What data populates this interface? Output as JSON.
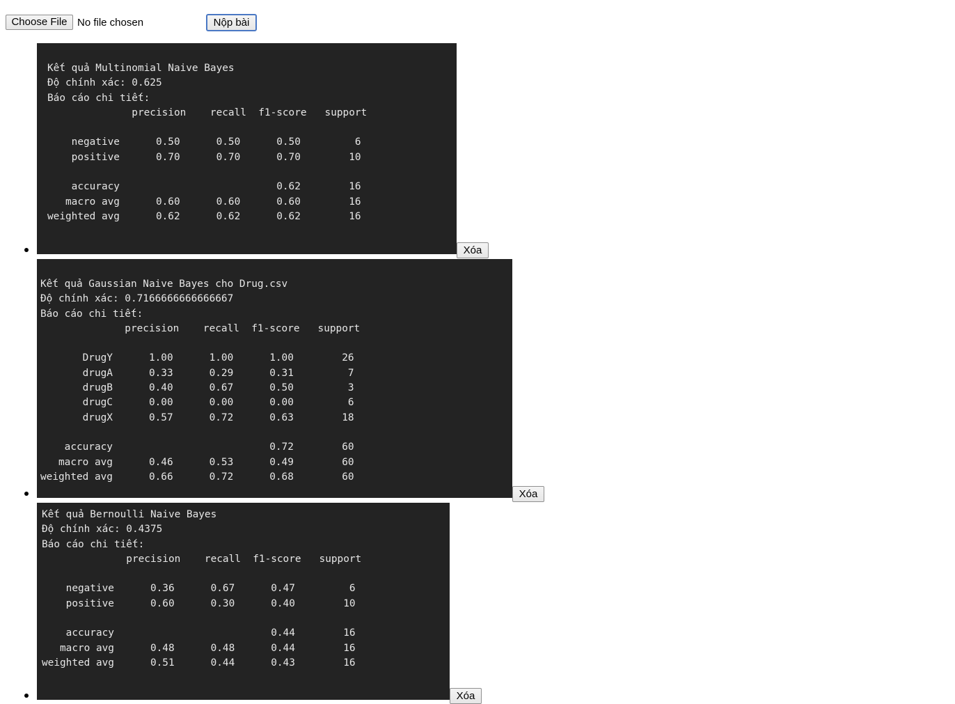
{
  "upload": {
    "choose_label": "Choose File",
    "file_status": "No file chosen",
    "submit_label": "Nộp bài"
  },
  "results": [
    {
      "title": "Kết quả Multinomial Naive Bayes",
      "accuracy_line": "Độ chính xác: 0.625",
      "report_heading": "Báo cáo chi tiết:",
      "columns": [
        "precision",
        "recall",
        "f1-score",
        "support"
      ],
      "classes": [
        {
          "label": "negative",
          "precision": "0.50",
          "recall": "0.50",
          "f1": "0.50",
          "support": "6"
        },
        {
          "label": "positive",
          "precision": "0.70",
          "recall": "0.70",
          "f1": "0.70",
          "support": "10"
        }
      ],
      "summary": [
        {
          "label": "accuracy",
          "precision": "",
          "recall": "",
          "f1": "0.62",
          "support": "16"
        },
        {
          "label": "macro avg",
          "precision": "0.60",
          "recall": "0.60",
          "f1": "0.60",
          "support": "16"
        },
        {
          "label": "weighted avg",
          "precision": "0.62",
          "recall": "0.62",
          "f1": "0.62",
          "support": "16"
        }
      ],
      "delete_label": "Xóa"
    },
    {
      "title": "Kết quả Gaussian Naive Bayes cho Drug.csv",
      "accuracy_line": "Độ chính xác: 0.7166666666666667",
      "report_heading": "Báo cáo chi tiết:",
      "columns": [
        "precision",
        "recall",
        "f1-score",
        "support"
      ],
      "classes": [
        {
          "label": "DrugY",
          "precision": "1.00",
          "recall": "1.00",
          "f1": "1.00",
          "support": "26"
        },
        {
          "label": "drugA",
          "precision": "0.33",
          "recall": "0.29",
          "f1": "0.31",
          "support": "7"
        },
        {
          "label": "drugB",
          "precision": "0.40",
          "recall": "0.67",
          "f1": "0.50",
          "support": "3"
        },
        {
          "label": "drugC",
          "precision": "0.00",
          "recall": "0.00",
          "f1": "0.00",
          "support": "6"
        },
        {
          "label": "drugX",
          "precision": "0.57",
          "recall": "0.72",
          "f1": "0.63",
          "support": "18"
        }
      ],
      "summary": [
        {
          "label": "accuracy",
          "precision": "",
          "recall": "",
          "f1": "0.72",
          "support": "60"
        },
        {
          "label": "macro avg",
          "precision": "0.46",
          "recall": "0.53",
          "f1": "0.49",
          "support": "60"
        },
        {
          "label": "weighted avg",
          "precision": "0.66",
          "recall": "0.72",
          "f1": "0.68",
          "support": "60"
        }
      ],
      "delete_label": "Xóa"
    },
    {
      "title": "Kết quả Bernoulli Naive Bayes",
      "accuracy_line": "Độ chính xác: 0.4375",
      "report_heading": "Báo cáo chi tiết:",
      "columns": [
        "precision",
        "recall",
        "f1-score",
        "support"
      ],
      "classes": [
        {
          "label": "negative",
          "precision": "0.36",
          "recall": "0.67",
          "f1": "0.47",
          "support": "6"
        },
        {
          "label": "positive",
          "precision": "0.60",
          "recall": "0.30",
          "f1": "0.40",
          "support": "10"
        }
      ],
      "summary": [
        {
          "label": "accuracy",
          "precision": "",
          "recall": "",
          "f1": "0.44",
          "support": "16"
        },
        {
          "label": "macro avg",
          "precision": "0.48",
          "recall": "0.48",
          "f1": "0.44",
          "support": "16"
        },
        {
          "label": "weighted avg",
          "precision": "0.51",
          "recall": "0.44",
          "f1": "0.43",
          "support": "16"
        }
      ],
      "delete_label": "Xóa"
    }
  ]
}
